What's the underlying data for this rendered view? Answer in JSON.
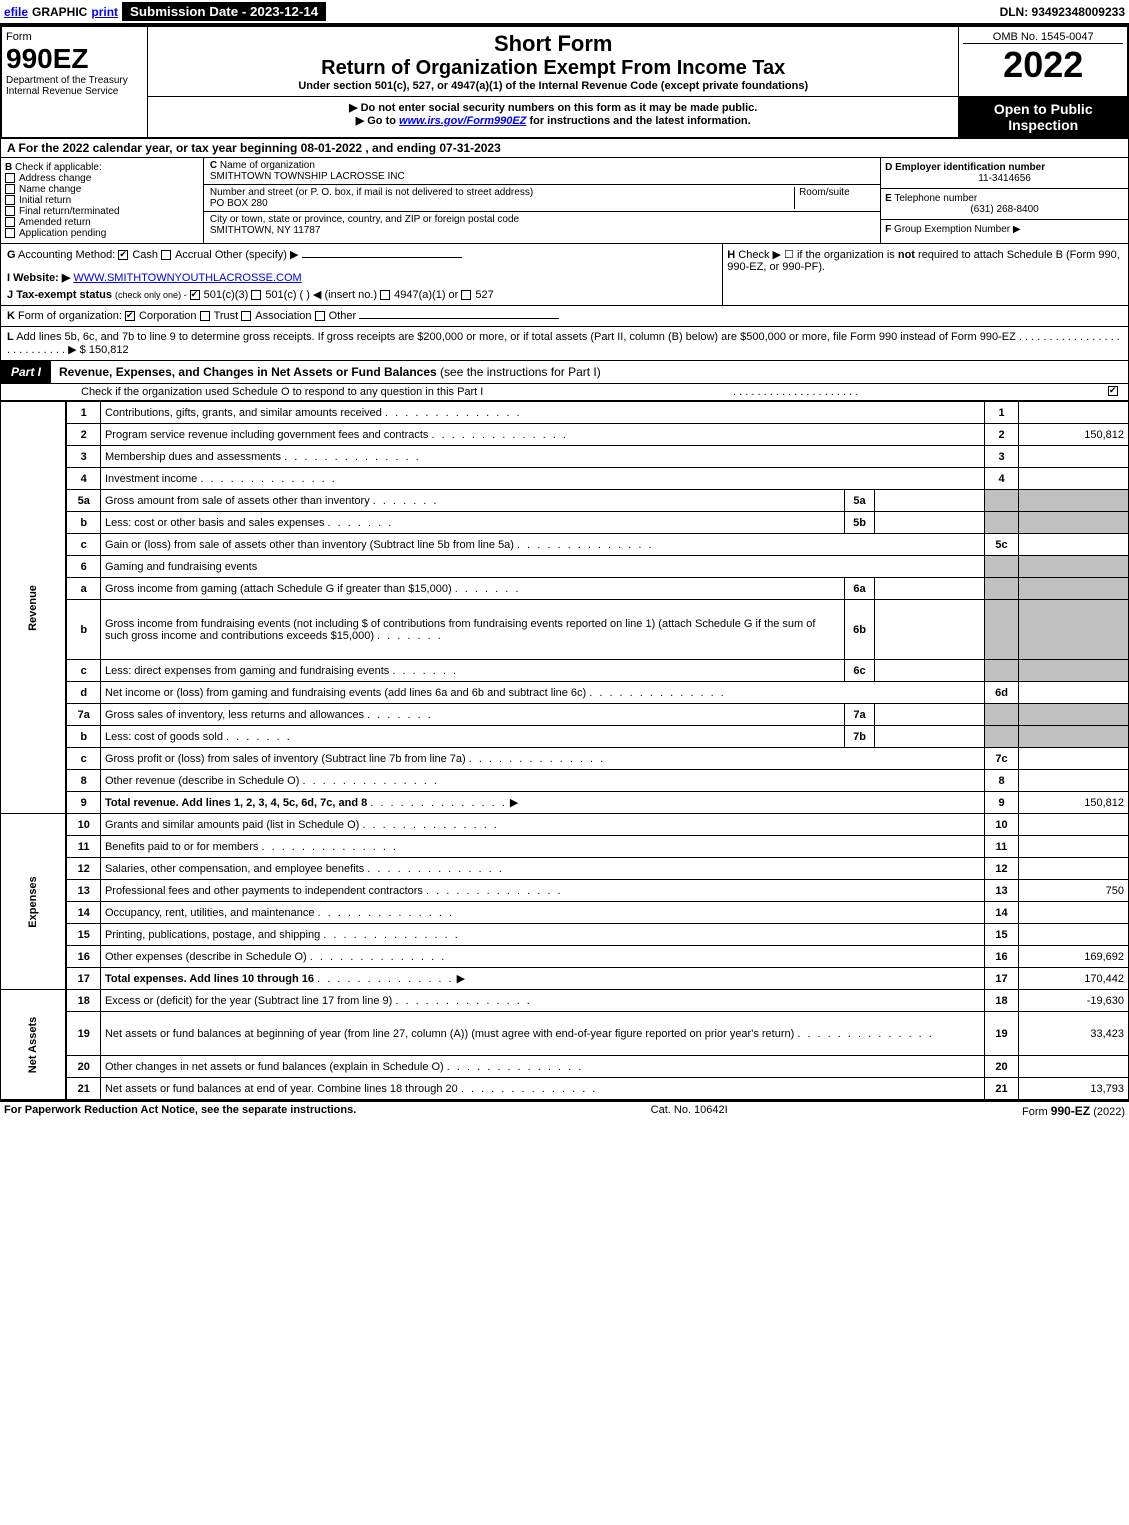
{
  "topbar": {
    "efile": "efile",
    "graphic": "GRAPHIC",
    "print": "print",
    "submission_label": "Submission Date - 2023-12-14",
    "dln": "DLN: 93492348009233"
  },
  "header": {
    "form_word": "Form",
    "form_num": "990EZ",
    "dept": "Department of the Treasury\nInternal Revenue Service",
    "short_form": "Short Form",
    "return_title": "Return of Organization Exempt From Income Tax",
    "under": "Under section 501(c), 527, or 4947(a)(1) of the Internal Revenue Code (except private foundations)",
    "warn": "▶ Do not enter social security numbers on this form as it may be made public.",
    "goto_pre": "▶ Go to ",
    "goto_link": "www.irs.gov/Form990EZ",
    "goto_post": " for instructions and the latest information.",
    "omb": "OMB No. 1545-0047",
    "taxyear": "2022",
    "open": "Open to Public Inspection"
  },
  "row_a": "A  For the 2022 calendar year, or tax year beginning 08-01-2022 , and ending 07-31-2023",
  "section_b": {
    "label": "B",
    "check_if": "Check if applicable:",
    "items": [
      "Address change",
      "Name change",
      "Initial return",
      "Final return/terminated",
      "Amended return",
      "Application pending"
    ]
  },
  "section_c": {
    "c_label": "C",
    "name_label": "Name of organization",
    "name": "SMITHTOWN TOWNSHIP LACROSSE INC",
    "street_label": "Number and street (or P. O. box, if mail is not delivered to street address)",
    "room_label": "Room/suite",
    "street": "PO BOX 280",
    "city_label": "City or town, state or province, country, and ZIP or foreign postal code",
    "city": "SMITHTOWN, NY  11787"
  },
  "section_d": {
    "d_label": "D",
    "ein_label": "Employer identification number",
    "ein": "11-3414656",
    "e_label": "E",
    "tel_label": "Telephone number",
    "tel": "(631) 268-8400",
    "f_label": "F",
    "group_label": "Group Exemption Number",
    "arrow": "▶"
  },
  "gh": {
    "g_label": "G",
    "acct": "Accounting Method:",
    "cash": "Cash",
    "accrual": "Accrual",
    "other": "Other (specify) ▶",
    "h_label": "H",
    "h_text": "Check ▶ ☐ if the organization is ",
    "h_not": "not",
    "h_text2": " required to attach Schedule B (Form 990, 990-EZ, or 990-PF).",
    "i_label": "I",
    "website_label": "Website: ▶",
    "website": "WWW.SMITHTOWNYOUTHLACROSSE.COM",
    "j_label": "J",
    "tax_exempt": "Tax-exempt status",
    "tax_exempt_note": "(check only one) -",
    "j_501c3": "501(c)(3)",
    "j_501c": "501(c) (   ) ◀ (insert no.)",
    "j_4947": "4947(a)(1) or",
    "j_527": "527"
  },
  "k": {
    "label": "K",
    "text": "Form of organization:",
    "corp": "Corporation",
    "trust": "Trust",
    "assoc": "Association",
    "other": "Other"
  },
  "l": {
    "label": "L",
    "text": "Add lines 5b, 6c, and 7b to line 9 to determine gross receipts. If gross receipts are $200,000 or more, or if total assets (Part II, column (B) below) are $500,000 or more, file Form 990 instead of Form 990-EZ",
    "arrow": "▶",
    "amount": "$ 150,812"
  },
  "part1": {
    "label": "Part I",
    "title": "Revenue, Expenses, and Changes in Net Assets or Fund Balances",
    "title_note": "(see the instructions for Part I)",
    "subtitle": "Check if the organization used Schedule O to respond to any question in this Part I"
  },
  "sections": {
    "revenue": "Revenue",
    "expenses": "Expenses",
    "netassets": "Net Assets"
  },
  "lines": [
    {
      "n": "1",
      "desc": "Contributions, gifts, grants, and similar amounts received",
      "rn": "1",
      "rv": ""
    },
    {
      "n": "2",
      "desc": "Program service revenue including government fees and contracts",
      "rn": "2",
      "rv": "150,812"
    },
    {
      "n": "3",
      "desc": "Membership dues and assessments",
      "rn": "3",
      "rv": ""
    },
    {
      "n": "4",
      "desc": "Investment income",
      "rn": "4",
      "rv": ""
    },
    {
      "n": "5a",
      "desc": "Gross amount from sale of assets other than inventory",
      "sub": "5a",
      "gray": true
    },
    {
      "n": "b",
      "desc": "Less: cost or other basis and sales expenses",
      "sub": "5b",
      "gray": true
    },
    {
      "n": "c",
      "desc": "Gain or (loss) from sale of assets other than inventory (Subtract line 5b from line 5a)",
      "rn": "5c",
      "rv": ""
    },
    {
      "n": "6",
      "desc": "Gaming and fundraising events",
      "noval": true,
      "gray": true
    },
    {
      "n": "a",
      "desc": "Gross income from gaming (attach Schedule G if greater than $15,000)",
      "sub": "6a",
      "gray": true
    },
    {
      "n": "b",
      "desc": "Gross income from fundraising events (not including $                     of contributions from fundraising events reported on line 1) (attach Schedule G if the sum of such gross income and contributions exceeds $15,000)",
      "sub": "6b",
      "gray": true,
      "tall": true
    },
    {
      "n": "c",
      "desc": "Less: direct expenses from gaming and fundraising events",
      "sub": "6c",
      "gray": true
    },
    {
      "n": "d",
      "desc": "Net income or (loss) from gaming and fundraising events (add lines 6a and 6b and subtract line 6c)",
      "rn": "6d",
      "rv": ""
    },
    {
      "n": "7a",
      "desc": "Gross sales of inventory, less returns and allowances",
      "sub": "7a",
      "gray": true
    },
    {
      "n": "b",
      "desc": "Less: cost of goods sold",
      "sub": "7b",
      "gray": true
    },
    {
      "n": "c",
      "desc": "Gross profit or (loss) from sales of inventory (Subtract line 7b from line 7a)",
      "rn": "7c",
      "rv": ""
    },
    {
      "n": "8",
      "desc": "Other revenue (describe in Schedule O)",
      "rn": "8",
      "rv": ""
    },
    {
      "n": "9",
      "desc": "Total revenue. Add lines 1, 2, 3, 4, 5c, 6d, 7c, and 8",
      "rn": "9",
      "rv": "150,812",
      "bold": true,
      "arrow": true
    }
  ],
  "expense_lines": [
    {
      "n": "10",
      "desc": "Grants and similar amounts paid (list in Schedule O)",
      "rn": "10",
      "rv": ""
    },
    {
      "n": "11",
      "desc": "Benefits paid to or for members",
      "rn": "11",
      "rv": ""
    },
    {
      "n": "12",
      "desc": "Salaries, other compensation, and employee benefits",
      "rn": "12",
      "rv": ""
    },
    {
      "n": "13",
      "desc": "Professional fees and other payments to independent contractors",
      "rn": "13",
      "rv": "750"
    },
    {
      "n": "14",
      "desc": "Occupancy, rent, utilities, and maintenance",
      "rn": "14",
      "rv": ""
    },
    {
      "n": "15",
      "desc": "Printing, publications, postage, and shipping",
      "rn": "15",
      "rv": ""
    },
    {
      "n": "16",
      "desc": "Other expenses (describe in Schedule O)",
      "rn": "16",
      "rv": "169,692"
    },
    {
      "n": "17",
      "desc": "Total expenses. Add lines 10 through 16",
      "rn": "17",
      "rv": "170,442",
      "bold": true,
      "arrow": true
    }
  ],
  "netasset_lines": [
    {
      "n": "18",
      "desc": "Excess or (deficit) for the year (Subtract line 17 from line 9)",
      "rn": "18",
      "rv": "-19,630"
    },
    {
      "n": "19",
      "desc": "Net assets or fund balances at beginning of year (from line 27, column (A)) (must agree with end-of-year figure reported on prior year's return)",
      "rn": "19",
      "rv": "33,423",
      "tall": true
    },
    {
      "n": "20",
      "desc": "Other changes in net assets or fund balances (explain in Schedule O)",
      "rn": "20",
      "rv": ""
    },
    {
      "n": "21",
      "desc": "Net assets or fund balances at end of year. Combine lines 18 through 20",
      "rn": "21",
      "rv": "13,793"
    }
  ],
  "footer": {
    "left": "For Paperwork Reduction Act Notice, see the separate instructions.",
    "center": "Cat. No. 10642I",
    "right_pre": "Form ",
    "right_bold": "990-EZ",
    "right_post": " (2022)"
  }
}
